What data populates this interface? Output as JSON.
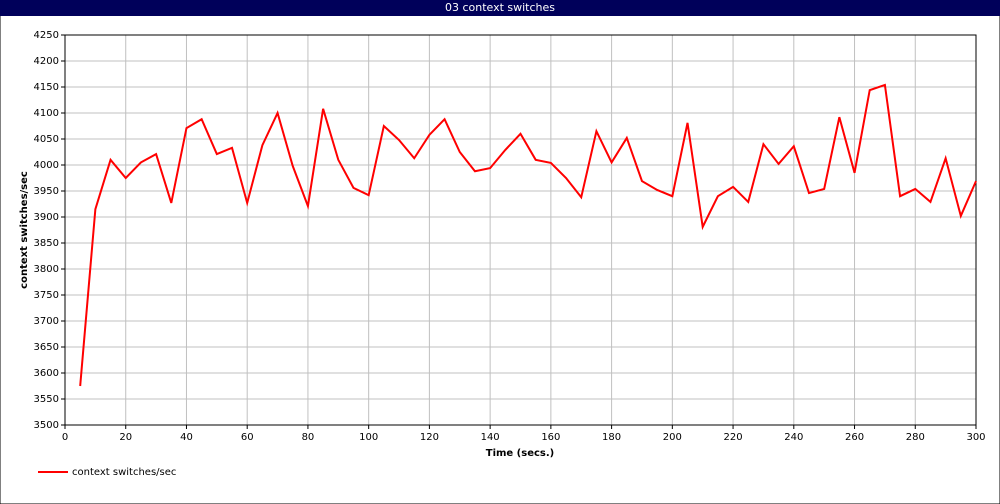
{
  "chart_data": {
    "type": "line",
    "title": "03 context switches",
    "xlabel": "Time (secs.)",
    "ylabel": "context switches/sec",
    "x": [
      5,
      10,
      15,
      20,
      25,
      30,
      35,
      40,
      45,
      50,
      55,
      60,
      65,
      70,
      75,
      80,
      85,
      90,
      95,
      100,
      105,
      110,
      115,
      120,
      125,
      130,
      135,
      140,
      145,
      150,
      155,
      160,
      165,
      170,
      175,
      180,
      185,
      190,
      195,
      200,
      205,
      210,
      215,
      220,
      225,
      230,
      235,
      240,
      245,
      250,
      255,
      260,
      265,
      270,
      275,
      280,
      285,
      290,
      295,
      300
    ],
    "series": [
      {
        "name": "context switches/sec",
        "color": "#ff0000",
        "values": [
          3575,
          3915,
          4010,
          3975,
          4005,
          4021,
          3927,
          4071,
          4088,
          4021,
          4033,
          3927,
          4038,
          4100,
          3998,
          3921,
          4108,
          4010,
          3956,
          3942,
          4075,
          4048,
          4013,
          4058,
          4088,
          4025,
          3988,
          3994,
          4029,
          4060,
          4010,
          4004,
          3975,
          3938,
          4065,
          4005,
          4052,
          3969,
          3952,
          3940,
          4081,
          3881,
          3940,
          3958,
          3929,
          4040,
          4002,
          4036,
          3946,
          3954,
          4092,
          3985,
          4144,
          4154,
          3940,
          3954,
          3929,
          4013,
          3902,
          3969
        ]
      }
    ],
    "xlim": [
      0,
      300
    ],
    "xticks": [
      0,
      20,
      40,
      60,
      80,
      100,
      120,
      140,
      160,
      180,
      200,
      220,
      240,
      260,
      280,
      300
    ],
    "ylim": [
      3500,
      4250
    ],
    "yticks": [
      3500,
      3550,
      3600,
      3650,
      3700,
      3750,
      3800,
      3850,
      3900,
      3950,
      4000,
      4050,
      4100,
      4150,
      4200,
      4250
    ],
    "grid": true
  }
}
